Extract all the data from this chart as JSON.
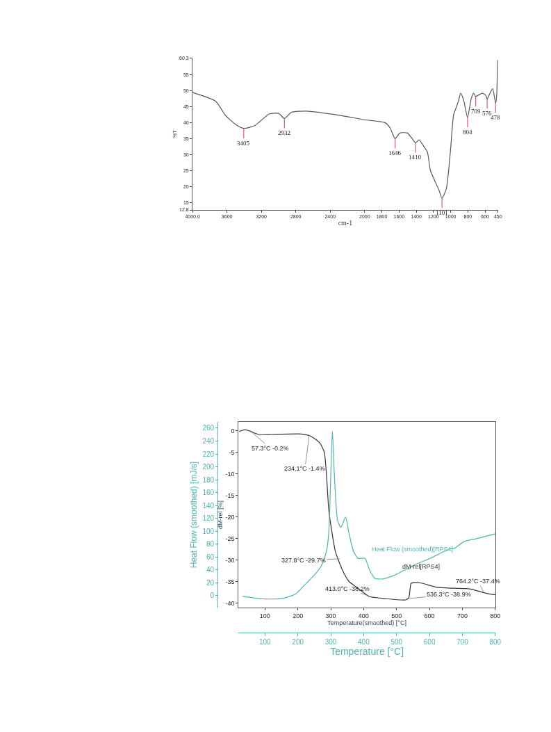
{
  "chart_data": [
    {
      "type": "line",
      "xlabel": "cm-1",
      "ylabel": "%T",
      "xlim": [
        4000,
        450
      ],
      "ylim": [
        12.8,
        60.3
      ],
      "xticks": [
        {
          "value": 4000,
          "label": "4000.0"
        },
        3600,
        3200,
        2800,
        2400,
        2000,
        1800,
        1600,
        1400,
        1200,
        1000,
        800,
        600,
        450
      ],
      "yticks": [
        12.8,
        15,
        20,
        25,
        30,
        35,
        40,
        45,
        50,
        55,
        60.3
      ],
      "series": [
        {
          "color": "#555555",
          "x": [
            4000,
            3733,
            3618,
            3503,
            3405,
            3275,
            3109,
            2999,
            2932,
            2853,
            2676,
            2294,
            2000,
            1765,
            1706,
            1646,
            1592,
            1507,
            1453,
            1410,
            1367,
            1323,
            1271,
            1236,
            1184,
            1132,
            1101,
            1051,
            1004,
            967,
            939,
            911,
            883,
            846,
            804,
            762,
            734,
            709,
            667,
            629,
            591,
            576,
            544,
            512,
            478,
            465,
            456
          ],
          "values": [
            49.5,
            46.8,
            42.4,
            39.6,
            38.3,
            39.2,
            42.8,
            43.0,
            41.4,
            43.3,
            43.7,
            42.4,
            41.0,
            40.1,
            38.5,
            35.1,
            36.8,
            36.9,
            35.3,
            33.8,
            34.7,
            33.1,
            30.9,
            25.2,
            21.9,
            18.7,
            16.5,
            19.4,
            30.9,
            42.4,
            44.6,
            46.8,
            49.3,
            46.8,
            41.7,
            47.5,
            49.3,
            48.3,
            48.9,
            49.3,
            48.6,
            47.5,
            49.3,
            50.7,
            46.2,
            48.9,
            59.7
          ]
        }
      ],
      "annotations": [
        {
          "text": "3405",
          "x": 3405,
          "y": 38.3
        },
        {
          "text": "2932",
          "x": 2932,
          "y": 41.4
        },
        {
          "text": "1646",
          "x": 1646,
          "y": 35.1
        },
        {
          "text": "1410",
          "x": 1410,
          "y": 33.8
        },
        {
          "text": "1101",
          "x": 1101,
          "y": 16.5
        },
        {
          "text": "804",
          "x": 804,
          "y": 41.7
        },
        {
          "text": "709",
          "x": 709,
          "y": 48.3
        },
        {
          "text": "576",
          "x": 576,
          "y": 47.5
        },
        {
          "text": "478",
          "x": 478,
          "y": 46.2
        }
      ]
    },
    {
      "type": "line",
      "xlabel": "Temperature(smoothed) [°C]",
      "x2label": "Temperature [°C]",
      "ylabel": "dM-rel [%]",
      "y2label": "Heat Flow (smoothed) [mJ/s]",
      "xlim": [
        20,
        800
      ],
      "xticks": [
        100,
        200,
        300,
        400,
        500,
        600,
        700,
        800
      ],
      "x2lim": [
        20,
        800
      ],
      "x2ticks": [
        100,
        200,
        300,
        400,
        500,
        600,
        700,
        800
      ],
      "ylim": [
        -41,
        2
      ],
      "yticks": [
        0,
        -5,
        -10,
        -15,
        -20,
        -25,
        -30,
        -35,
        -40
      ],
      "y2lim": [
        -18.6,
        269.7
      ],
      "y2ticks": [
        0,
        20,
        40,
        60,
        80,
        100,
        120,
        140,
        160,
        180,
        200,
        220,
        240,
        260
      ],
      "series": [
        {
          "name": "dM-rel[RPS4]",
          "color": "#333333",
          "x": [
            22.4,
            39.6,
            56.8,
            80.8,
            122,
            211,
            239,
            266,
            280,
            287,
            294,
            304,
            314,
            335,
            355,
            383,
            417,
            465,
            527,
            537,
            544,
            551,
            575,
            623,
            671,
            719,
            770,
            788,
            800
          ],
          "values": [
            -0.2,
            0.2,
            -0.2,
            -0.9,
            -0.9,
            -0.8,
            -1.3,
            -2.8,
            -4.9,
            -10.3,
            -18.3,
            -23.7,
            -28.0,
            -32.2,
            -34.9,
            -36.5,
            -38.4,
            -38.9,
            -39.2,
            -38.7,
            -35.4,
            -35.2,
            -35.3,
            -36.3,
            -36.5,
            -36.6,
            -37.6,
            -37.9,
            -38.0
          ]
        },
        {
          "name": "Heat Flow (smoothed)[RPS4]",
          "color": "#4db6ac",
          "axis": "y2",
          "x": [
            31,
            101,
            156,
            194,
            225,
            252,
            273,
            287,
            294,
            299,
            305,
            311,
            321,
            331,
            345,
            355,
            369,
            383,
            404,
            417,
            434,
            458,
            499,
            534,
            537,
            547,
            602,
            664,
            674,
            705,
            739,
            800
          ],
          "values": [
            -1,
            -5,
            -4,
            3,
            19,
            33,
            48,
            69,
            98,
            169,
            256,
            187,
            116,
            106,
            122,
            98,
            69,
            58,
            58,
            41,
            27,
            26,
            33,
            42,
            41,
            46,
            58,
            73,
            73,
            84,
            88,
            96
          ]
        }
      ],
      "annotations": [
        {
          "text": "57.3°C -0.2%",
          "x": 57.3,
          "y": -0.2
        },
        {
          "text": "234.1°C -1.4%",
          "x": 234.1,
          "y": -1.4
        },
        {
          "text": "327.8°C -29.7%",
          "x": 327.8,
          "y": -29.7
        },
        {
          "text": "413.0°C -38.2%",
          "x": 413.0,
          "y": -38.2
        },
        {
          "text": "536.3°C -38.9%",
          "x": 536.3,
          "y": -38.9
        },
        {
          "text": "764.2°C -37.4%",
          "x": 764.2,
          "y": -37.4
        }
      ]
    }
  ]
}
